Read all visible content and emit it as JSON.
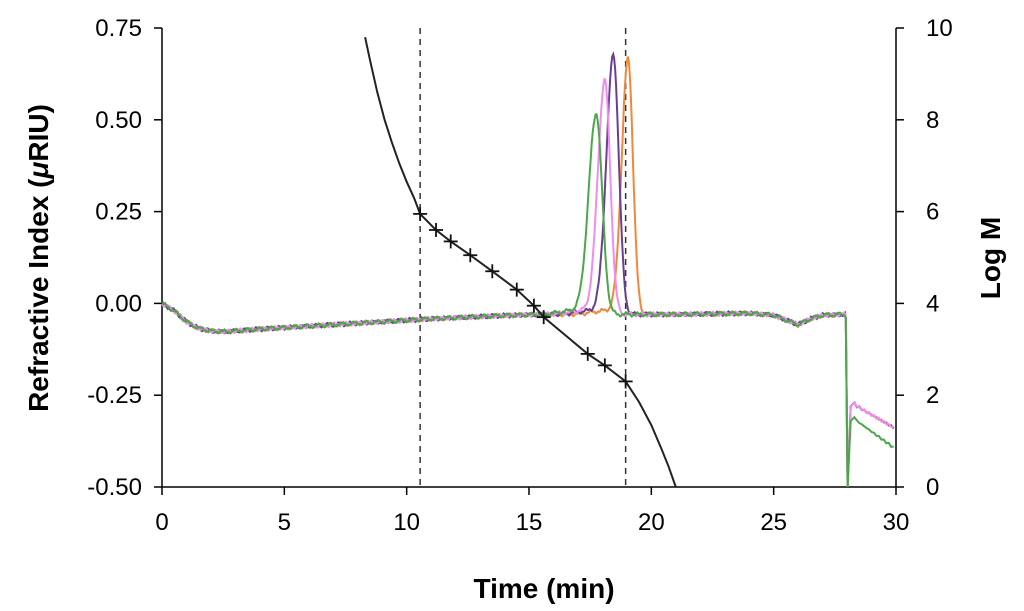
{
  "chart_data": {
    "type": "line",
    "xlabel": "Time (min)",
    "ylabel": "Refractive Index (μRIU)",
    "ylabel_parts": [
      "Refractive Index (",
      "μ",
      "RIU)"
    ],
    "y2label": "Log M",
    "xlim": [
      0,
      30
    ],
    "ylim": [
      -0.5,
      0.75
    ],
    "y2lim": [
      0,
      10
    ],
    "x_ticks": [
      0,
      5,
      10,
      15,
      20,
      25,
      30
    ],
    "x_tick_labels": [
      "0",
      "5",
      "10",
      "15",
      "20",
      "25",
      "30"
    ],
    "y_ticks": [
      -0.5,
      -0.25,
      0,
      0.25,
      0.5,
      0.75
    ],
    "y_tick_labels": [
      "-0.50",
      "-0.25",
      "0.00",
      "0.25",
      "0.50",
      "0.75"
    ],
    "y2_ticks": [
      0,
      2,
      4,
      6,
      8,
      10
    ],
    "y2_tick_labels": [
      "0",
      "2",
      "4",
      "6",
      "8",
      "10"
    ],
    "grid": false,
    "vlines": [
      10.55,
      18.95
    ],
    "series": [
      {
        "color": "#f0873a",
        "peak": [
          19.05,
          0.665
        ],
        "peak_width": 0.2
      },
      {
        "color": "#6b3f8f",
        "peak": [
          18.45,
          0.675
        ],
        "peak_width": 0.22
      },
      {
        "color": "#f08cf0",
        "peak": [
          18.1,
          0.605
        ],
        "peak_width": 0.22
      },
      {
        "color": "#4aa84a",
        "peak": [
          17.75,
          0.515
        ],
        "peak_width": 0.24
      }
    ],
    "baseline": {
      "x": [
        0,
        0.5,
        1,
        1.5,
        2,
        2.5,
        3,
        4,
        5,
        6,
        7,
        8,
        9,
        10,
        11,
        12,
        13,
        14,
        15,
        16,
        17,
        20,
        21,
        22,
        23,
        24,
        25,
        25.5,
        26,
        26.5,
        27,
        27.9
      ],
      "y": [
        0,
        -0.02,
        -0.05,
        -0.068,
        -0.075,
        -0.077,
        -0.075,
        -0.07,
        -0.066,
        -0.062,
        -0.058,
        -0.054,
        -0.05,
        -0.046,
        -0.042,
        -0.039,
        -0.036,
        -0.033,
        -0.031,
        -0.03,
        -0.03,
        -0.03,
        -0.03,
        -0.029,
        -0.028,
        -0.027,
        -0.032,
        -0.045,
        -0.058,
        -0.042,
        -0.032,
        -0.03
      ]
    },
    "calibration_curve": {
      "color": "#222222",
      "x": [
        8.3,
        8.5,
        8.8,
        9.1,
        9.4,
        9.7,
        10.0,
        10.3,
        10.55,
        11.2,
        11.8,
        12.6,
        13.5,
        14.5,
        15.2,
        15.6,
        16.5,
        17.4,
        18.1,
        18.95,
        19.5,
        20.0,
        20.4,
        20.7,
        21.0
      ],
      "y": [
        9.8,
        9.3,
        8.6,
        8.0,
        7.5,
        7.05,
        6.65,
        6.3,
        5.95,
        5.6,
        5.35,
        5.05,
        4.7,
        4.3,
        3.95,
        3.7,
        3.3,
        2.9,
        2.65,
        2.3,
        1.85,
        1.35,
        0.85,
        0.45,
        0.0
      ]
    },
    "calibration_points": {
      "x": [
        10.55,
        11.2,
        11.8,
        12.6,
        13.5,
        14.5,
        15.2,
        15.6,
        17.4,
        18.1,
        18.95
      ],
      "y": [
        5.95,
        5.6,
        5.35,
        5.05,
        4.7,
        4.3,
        3.95,
        3.7,
        2.9,
        2.65,
        2.3
      ]
    }
  }
}
